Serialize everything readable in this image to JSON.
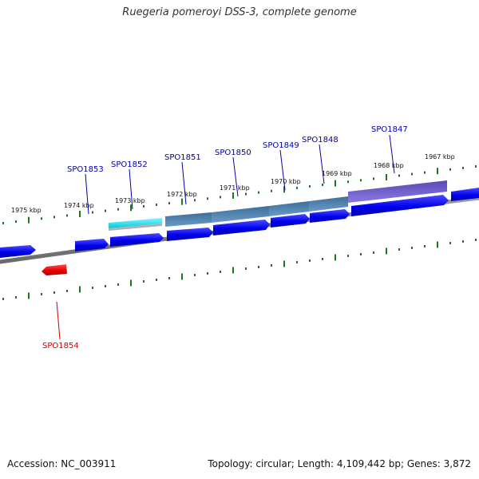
{
  "title": "Ruegeria pomeroyi DSS-3, complete genome",
  "accession_label": "Accession: NC_003911",
  "summary_label": "Topology: circular; Length: 4,109,442 bp; Genes: 3,872",
  "colors": {
    "backbone": "#808080",
    "tick": "#1a7a1a",
    "gene_forward": "#0000ee",
    "gene_reverse": "#ee0000",
    "label_forward": "#0000aa",
    "label_reverse": "#cc0000",
    "feature_cyan": "#00e5ee",
    "feature_steel": "#4a7fb0",
    "feature_purple": "#6a5acd"
  },
  "scale": {
    "ticks_kbp": [
      "1975 kbp",
      "1974 kbp",
      "1973 kbp",
      "1972 kbp",
      "1971 kbp",
      "1970 kbp",
      "1969 kbp",
      "1968 kbp",
      "1967 kbp"
    ]
  },
  "genes": [
    {
      "label": "SPO1853",
      "strand": "forward"
    },
    {
      "label": "SPO1852",
      "strand": "forward"
    },
    {
      "label": "SPO1851",
      "strand": "forward"
    },
    {
      "label": "SPO1850",
      "strand": "forward"
    },
    {
      "label": "SPO1849",
      "strand": "forward"
    },
    {
      "label": "SPO1848",
      "strand": "forward"
    },
    {
      "label": "SPO1847",
      "strand": "forward"
    },
    {
      "label": "SPO1854",
      "strand": "reverse"
    }
  ]
}
